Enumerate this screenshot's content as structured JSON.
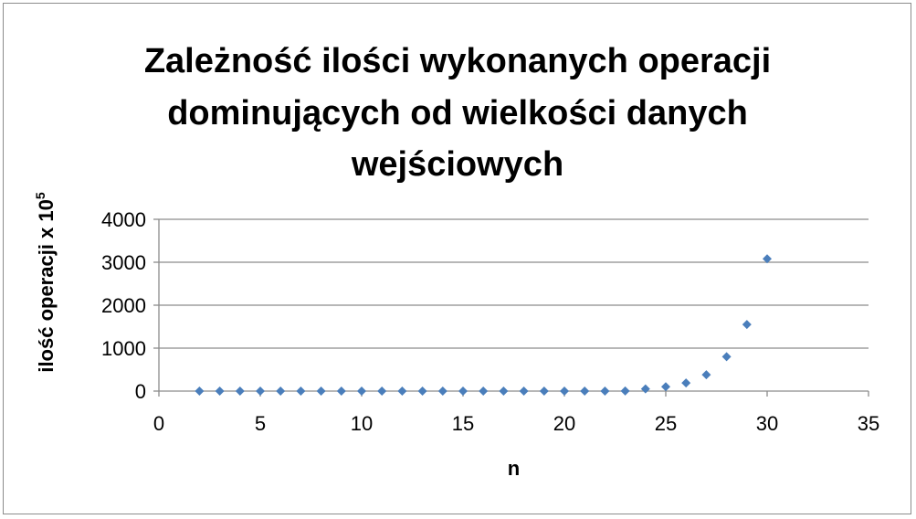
{
  "chart_data": {
    "type": "scatter",
    "title": [
      "Zależność ilości wykonanych operacji",
      "dominujących od wielkości danych",
      "wejściowych"
    ],
    "xlabel": "n",
    "ylabel": "ilość operacji x 10",
    "ylabel_superscript": "5",
    "xlim": [
      0,
      35
    ],
    "ylim": [
      0,
      4000
    ],
    "x_ticks": [
      0,
      5,
      10,
      15,
      20,
      25,
      30,
      35
    ],
    "y_ticks": [
      0,
      1000,
      2000,
      3000,
      4000
    ],
    "grid": "horizontal",
    "legend": "none",
    "marker_color": "#4a7ebb",
    "marker": "diamond",
    "series": [
      {
        "x": [
          2,
          3,
          4,
          5,
          6,
          7,
          8,
          9,
          10,
          11,
          12,
          13,
          14,
          15,
          16,
          17,
          18,
          19,
          20,
          21,
          22,
          23,
          24,
          25,
          26,
          27,
          28,
          29,
          30
        ],
        "y": [
          0,
          0,
          0,
          0,
          0,
          0,
          0,
          0,
          0,
          0,
          0,
          0,
          0,
          0,
          0,
          0,
          0,
          0,
          0,
          0,
          1,
          3,
          50,
          100,
          190,
          380,
          800,
          1550,
          3080
        ]
      }
    ]
  }
}
